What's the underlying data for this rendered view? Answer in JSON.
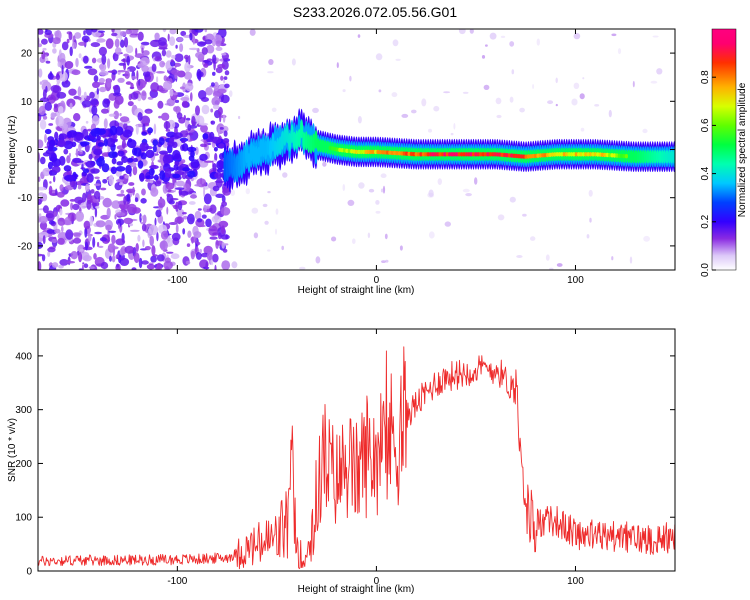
{
  "title": "S233.2026.072.05.56.G01",
  "chart_data": [
    {
      "type": "heatmap",
      "panel": "spectrogram",
      "xlabel": "Height of straight line (km)",
      "ylabel": "Frequency (Hz)",
      "xlim": [
        -170,
        150
      ],
      "ylim": [
        -25,
        25
      ],
      "x_ticks": [
        -100,
        0,
        100
      ],
      "y_ticks": [
        20,
        10,
        0,
        -10,
        -20
      ],
      "x_tick_labels": [
        "-100",
        "0",
        "100"
      ],
      "y_tick_labels": [
        "20",
        "10",
        "0",
        "-10",
        "-20"
      ],
      "colorbar": {
        "label": "Normalized spectral amplitude",
        "range": [
          0.0,
          1.0
        ],
        "ticks": [
          0.0,
          0.2,
          0.4,
          0.6,
          0.8
        ],
        "tick_labels": [
          "0.0",
          "0.2",
          "0.4",
          "0.6",
          "0.8"
        ]
      },
      "track": [
        {
          "x": -75,
          "y": -4,
          "a": 0.3
        },
        {
          "x": -65,
          "y": -2,
          "a": 0.35
        },
        {
          "x": -55,
          "y": 0,
          "a": 0.35
        },
        {
          "x": -45,
          "y": 2,
          "a": 0.4
        },
        {
          "x": -38,
          "y": 3.5,
          "a": 0.45
        },
        {
          "x": -30,
          "y": 1,
          "a": 0.5
        },
        {
          "x": -20,
          "y": 0,
          "a": 0.6
        },
        {
          "x": -10,
          "y": -0.5,
          "a": 0.7
        },
        {
          "x": 0,
          "y": -0.5,
          "a": 0.75
        },
        {
          "x": 20,
          "y": -1,
          "a": 0.85
        },
        {
          "x": 40,
          "y": -1,
          "a": 0.9
        },
        {
          "x": 60,
          "y": -1,
          "a": 0.9
        },
        {
          "x": 75,
          "y": -1.5,
          "a": 0.85
        },
        {
          "x": 90,
          "y": -1,
          "a": 0.7
        },
        {
          "x": 110,
          "y": -1,
          "a": 0.75
        },
        {
          "x": 130,
          "y": -1.5,
          "a": 0.5
        },
        {
          "x": 150,
          "y": -1.5,
          "a": 0.4
        }
      ]
    },
    {
      "type": "line",
      "panel": "snr",
      "xlabel": "Height of straight line (km)",
      "ylabel": "SNR (10 * v/v)",
      "xlim": [
        -170,
        150
      ],
      "ylim": [
        0,
        450
      ],
      "x_ticks": [
        -100,
        0,
        100
      ],
      "y_ticks": [
        0,
        100,
        200,
        300,
        400
      ],
      "x_tick_labels": [
        "-100",
        "0",
        "100"
      ],
      "y_tick_labels": [
        "0",
        "100",
        "200",
        "300",
        "400"
      ],
      "series": [
        {
          "name": "SNR",
          "color": "#ee2b2b",
          "x": [
            -170,
            -150,
            -130,
            -110,
            -90,
            -75,
            -65,
            -58,
            -50,
            -45,
            -42,
            -40,
            -37,
            -35,
            -30,
            -27,
            -25,
            -20,
            -15,
            -10,
            -5,
            0,
            5,
            10,
            15,
            20,
            25,
            30,
            35,
            40,
            45,
            50,
            55,
            60,
            63,
            66,
            69,
            71,
            73,
            75,
            80,
            85,
            90,
            95,
            100,
            110,
            120,
            130,
            140,
            150
          ],
          "values": [
            18,
            20,
            20,
            21,
            22,
            25,
            40,
            50,
            60,
            90,
            150,
            50,
            20,
            30,
            120,
            220,
            200,
            170,
            200,
            180,
            220,
            220,
            240,
            250,
            290,
            310,
            330,
            350,
            360,
            365,
            370,
            375,
            375,
            375,
            365,
            350,
            340,
            320,
            230,
            110,
            90,
            90,
            95,
            80,
            70,
            65,
            65,
            60,
            60,
            65
          ]
        }
      ]
    }
  ]
}
